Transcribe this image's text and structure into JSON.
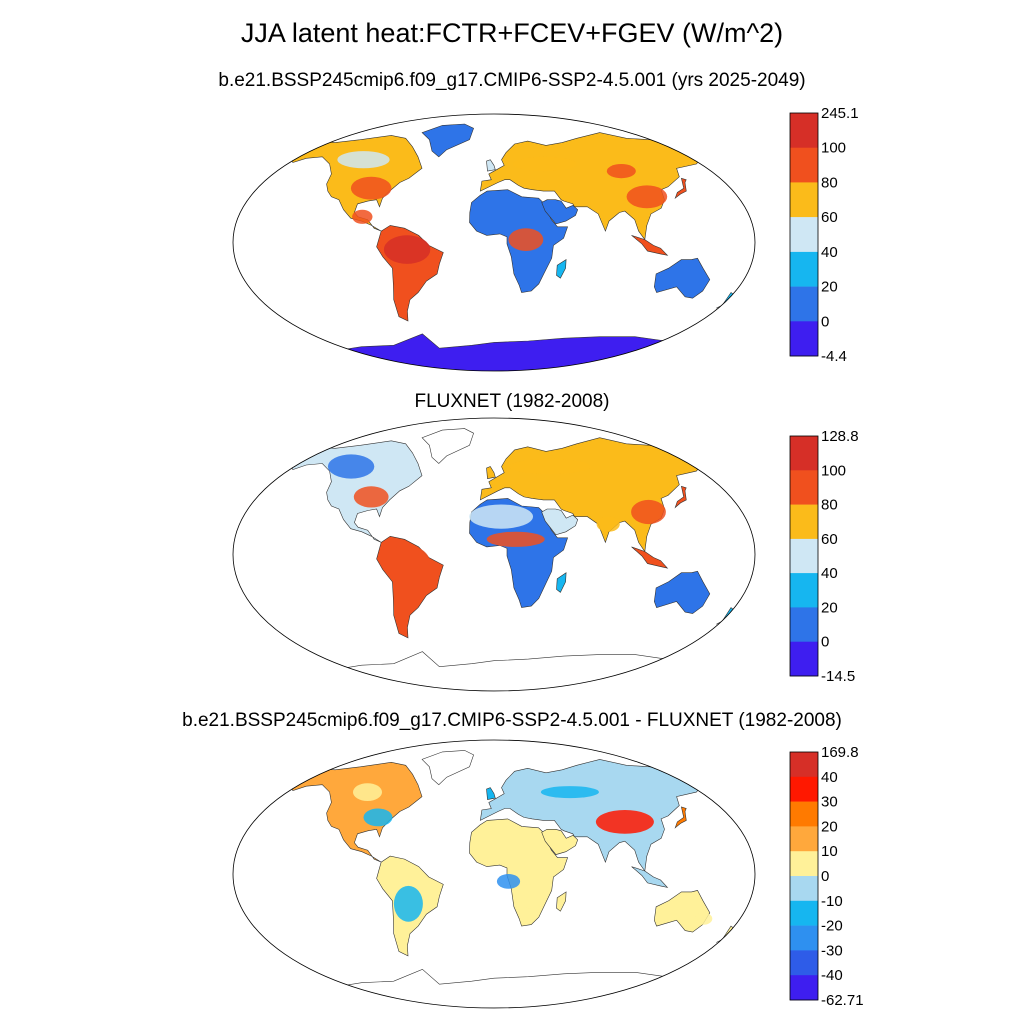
{
  "figure_title": "JJA latent heat:FCTR+FCEV+FGEV (W/m^2)",
  "panels": [
    {
      "title": "b.e21.BSSP245cmip6.f09_g17.CMIP6-SSP2-4.5.001 (yrs 2025-2049)",
      "colorbar_labels": [
        "245.1",
        "100",
        "80",
        "60",
        "40",
        "20",
        "0",
        "-4.4"
      ],
      "colorbar_colors": [
        "#d62f27",
        "#f0501e",
        "#fbbb1a",
        "#cfe7f4",
        "#16b6f0",
        "#2e74e8",
        "#3e1ef0"
      ]
    },
    {
      "title": "FLUXNET (1982-2008)",
      "colorbar_labels": [
        "128.8",
        "100",
        "80",
        "60",
        "40",
        "20",
        "0",
        "-14.5"
      ],
      "colorbar_colors": [
        "#d62f27",
        "#f0501e",
        "#fbbb1a",
        "#cfe7f4",
        "#16b6f0",
        "#2e74e8",
        "#3e1ef0"
      ]
    },
    {
      "title": "b.e21.BSSP245cmip6.f09_g17.CMIP6-SSP2-4.5.001 - FLUXNET (1982-2008)",
      "colorbar_labels": [
        "169.8",
        "40",
        "30",
        "20",
        "10",
        "0",
        "-10",
        "-20",
        "-30",
        "-40",
        "-62.71"
      ],
      "colorbar_colors": [
        "#d62f27",
        "#ff1800",
        "#ff7a00",
        "#ffa83c",
        "#fff199",
        "#a8d8f0",
        "#16b6f0",
        "#2e90f0",
        "#2e5ce8",
        "#3e1ef0"
      ]
    }
  ]
}
